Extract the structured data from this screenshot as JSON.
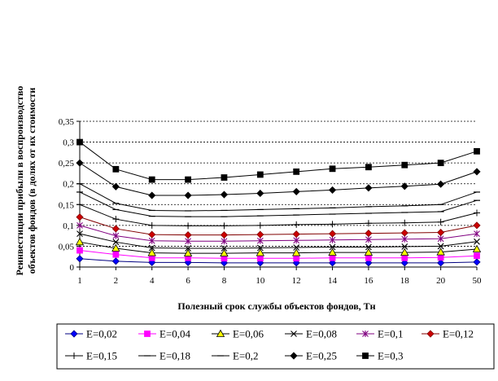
{
  "chart_data": {
    "type": "line",
    "xlabel": "Полезный срок службы объектов фондов, Тн",
    "ylabel_line1": "Реинвестиции прибыли в воспроизводство",
    "ylabel_line2": "объектов фондов  (в долях от их стоимости",
    "categories": [
      "1",
      "2",
      "4",
      "6",
      "8",
      "10",
      "12",
      "14",
      "16",
      "18",
      "20",
      "50"
    ],
    "ylim": [
      0,
      0.35
    ],
    "yticks": [
      0,
      0.05,
      0.1,
      0.15,
      0.2,
      0.25,
      0.3,
      0.35
    ],
    "ytick_labels": [
      "0",
      "0,05",
      "0,1",
      "0,15",
      "0,2",
      "0,25",
      "0,3",
      "0,35"
    ],
    "grid": "horizontal-dashed",
    "legend_position": "bottom",
    "series": [
      {
        "name": "E=0,02",
        "marker": "diamond",
        "color": "#000080",
        "fill": "#0000ff",
        "values": [
          0.02,
          0.014,
          0.011,
          0.011,
          0.01,
          0.01,
          0.01,
          0.01,
          0.01,
          0.01,
          0.01,
          0.012
        ]
      },
      {
        "name": "E=0,04",
        "marker": "square",
        "color": "#ff00ff",
        "fill": "#ff00ff",
        "values": [
          0.04,
          0.03,
          0.022,
          0.022,
          0.021,
          0.021,
          0.021,
          0.022,
          0.022,
          0.022,
          0.023,
          0.027
        ]
      },
      {
        "name": "E=0,06",
        "marker": "triangle",
        "color": "#000000",
        "fill": "#ffff00",
        "values": [
          0.06,
          0.045,
          0.034,
          0.033,
          0.033,
          0.034,
          0.034,
          0.035,
          0.035,
          0.035,
          0.036,
          0.043
        ]
      },
      {
        "name": "E=0,08",
        "marker": "x",
        "color": "#000000",
        "fill": "#000000",
        "values": [
          0.08,
          0.06,
          0.046,
          0.045,
          0.045,
          0.046,
          0.047,
          0.048,
          0.048,
          0.049,
          0.05,
          0.061
        ]
      },
      {
        "name": "E=0,1",
        "marker": "star",
        "color": "#800080",
        "fill": "#800080",
        "values": [
          0.1,
          0.075,
          0.063,
          0.062,
          0.062,
          0.063,
          0.064,
          0.065,
          0.066,
          0.067,
          0.068,
          0.08
        ]
      },
      {
        "name": "E=0,12",
        "marker": "circle",
        "color": "#800000",
        "fill": "#cc0000",
        "values": [
          0.12,
          0.092,
          0.078,
          0.077,
          0.077,
          0.078,
          0.079,
          0.08,
          0.081,
          0.082,
          0.083,
          0.1
        ]
      },
      {
        "name": "E=0,15",
        "marker": "plus",
        "color": "#000000",
        "fill": "#000000",
        "values": [
          0.15,
          0.115,
          0.1,
          0.099,
          0.099,
          0.1,
          0.102,
          0.103,
          0.105,
          0.106,
          0.108,
          0.13
        ]
      },
      {
        "name": "E=0,18",
        "marker": "dash",
        "color": "#000000",
        "fill": "#000000",
        "values": [
          0.18,
          0.138,
          0.122,
          0.121,
          0.121,
          0.123,
          0.125,
          0.127,
          0.129,
          0.131,
          0.133,
          0.16
        ]
      },
      {
        "name": "E=0,2",
        "marker": "dash",
        "color": "#000000",
        "fill": "#000000",
        "values": [
          0.2,
          0.153,
          0.136,
          0.135,
          0.136,
          0.138,
          0.14,
          0.142,
          0.145,
          0.147,
          0.15,
          0.18
        ]
      },
      {
        "name": "E=0,25",
        "marker": "diamond",
        "color": "#000000",
        "fill": "#000000",
        "values": [
          0.25,
          0.193,
          0.172,
          0.172,
          0.174,
          0.177,
          0.181,
          0.185,
          0.19,
          0.194,
          0.199,
          0.229
        ]
      },
      {
        "name": "E=0,3",
        "marker": "square",
        "color": "#000000",
        "fill": "#000000",
        "values": [
          0.3,
          0.235,
          0.21,
          0.21,
          0.215,
          0.222,
          0.229,
          0.236,
          0.24,
          0.245,
          0.25,
          0.278
        ]
      }
    ]
  }
}
